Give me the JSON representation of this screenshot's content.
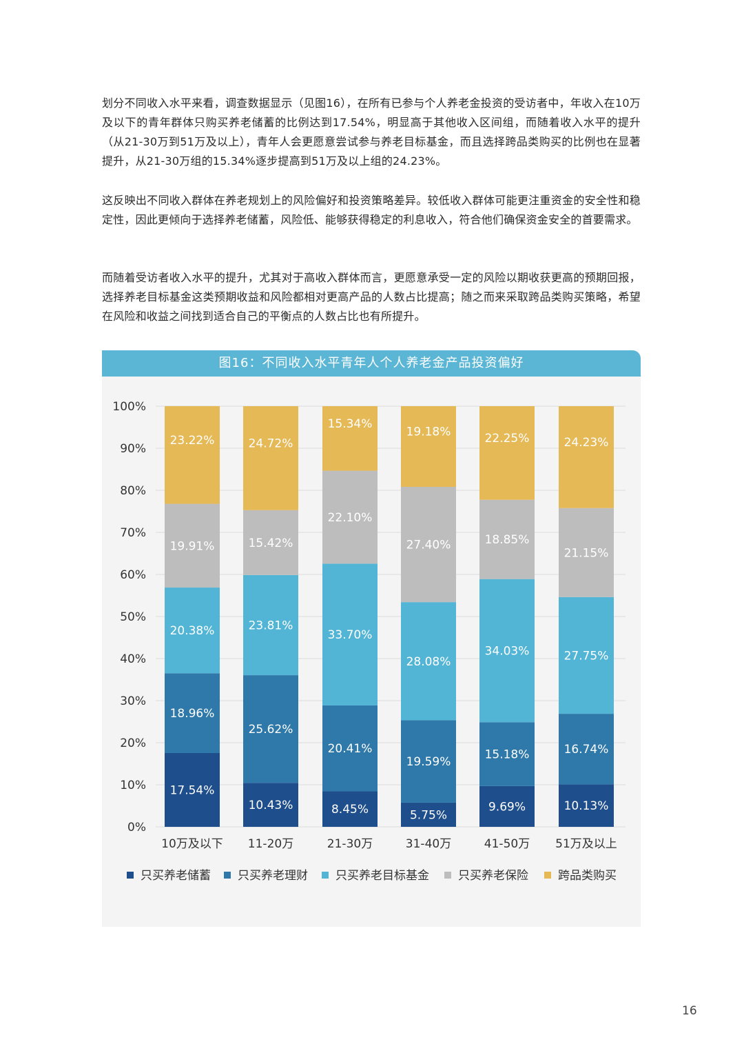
{
  "paragraphs": [
    "划分不同收入水平来看，调查数据显示（见图16），在所有已参与个人养老金投资的受访者中，年收入在10万及以下的青年群体只购买养老储蓄的比例达到17.54%，明显高于其他收入区间组，而随着收入水平的提升（从21-30万到51万及以上），青年人会更愿意尝试参与养老目标基金，而且选择跨品类购买的比例也在显著提升，从21-30万组的15.34%逐步提高到51万及以上组的24.23%。",
    "这反映出不同收入群体在养老规划上的风险偏好和投资策略差异。较低收入群体可能更注重资金的安全性和稳定性，因此更倾向于选择养老储蓄，风险低、能够获得稳定的利息收入，符合他们确保资金安全的首要需求。",
    "而随着受访者收入水平的提升，尤其对于高收入群体而言，更愿意承受一定的风险以期收获更高的预期回报，选择养老目标基金这类预期收益和风险都相对更高产品的人数占比提高；随之而来采取跨品类购买策略，希望在风险和收益之间找到适合自己的平衡点的人数占比也有所提升。"
  ],
  "figure": {
    "title": "图16：不同收入水平青年人个人养老金产品投资偏好"
  },
  "page_number": "16",
  "chart_data": {
    "type": "bar",
    "stacked": true,
    "categories": [
      "10万及以下",
      "11-20万",
      "21-30万",
      "31-40万",
      "41-50万",
      "51万及以上"
    ],
    "series": [
      {
        "name": "只买养老储蓄",
        "color": "#1f4e8c",
        "values": [
          17.54,
          10.43,
          8.45,
          5.75,
          9.69,
          10.13
        ]
      },
      {
        "name": "只买养老理财",
        "color": "#2e78aa",
        "values": [
          18.96,
          25.62,
          20.41,
          19.59,
          15.18,
          16.74
        ]
      },
      {
        "name": "只买养老目标基金",
        "color": "#53b5d6",
        "values": [
          20.38,
          23.81,
          33.7,
          28.08,
          34.03,
          27.75
        ]
      },
      {
        "name": "只买养老保险",
        "color": "#bdbdbd",
        "values": [
          19.91,
          15.42,
          22.1,
          27.4,
          18.85,
          21.15
        ]
      },
      {
        "name": "跨品类购买",
        "color": "#e6b957",
        "values": [
          23.22,
          24.72,
          15.34,
          19.18,
          22.25,
          24.23
        ]
      }
    ],
    "y_ticks": [
      "0%",
      "10%",
      "20%",
      "30%",
      "40%",
      "50%",
      "60%",
      "70%",
      "80%",
      "90%",
      "100%"
    ],
    "ylim": [
      0,
      100
    ],
    "grid": true,
    "legend": "bottom"
  }
}
